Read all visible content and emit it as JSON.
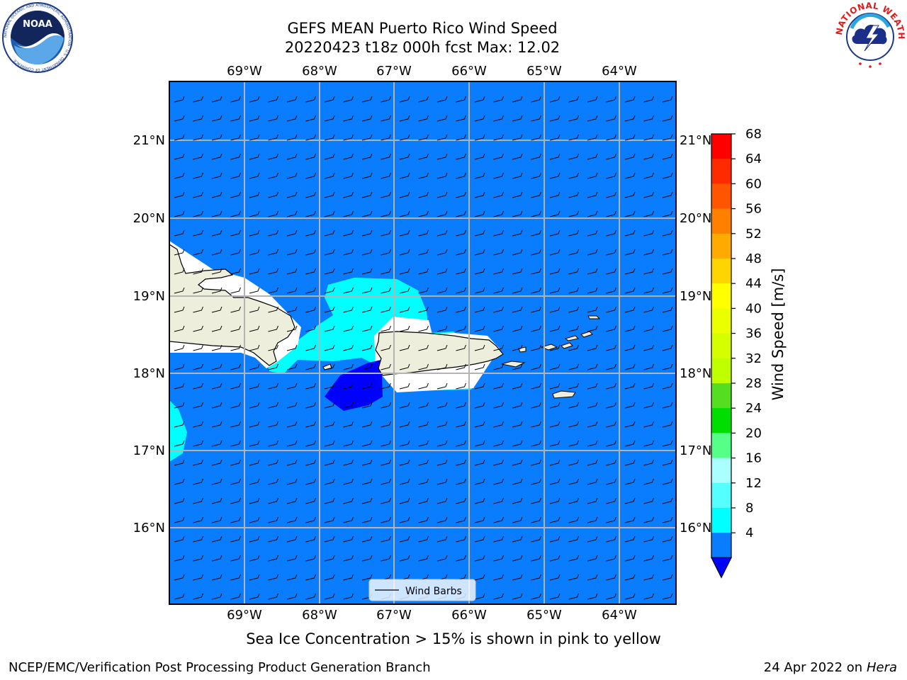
{
  "header": {
    "title_line1": "GEFS MEAN Puerto Rico Wind Speed",
    "title_line2": "20220423 t18z 000h fcst   Max: 12.02"
  },
  "logos": {
    "noaa_text": "NOAA",
    "noaa_ring_text": "NATIONAL OCEANIC AND ATMOSPHERIC ADMINISTRATION · U.S. DEPARTMENT OF COMMERCE",
    "nws_ring_text": "NATIONAL WEATHER SERVICE"
  },
  "map": {
    "lon_labels": [
      "69°W",
      "68°W",
      "67°W",
      "66°W",
      "65°W",
      "64°W"
    ],
    "lat_labels": [
      "21°N",
      "20°N",
      "19°N",
      "18°N",
      "17°N",
      "16°N"
    ],
    "legend_label": "Wind Barbs",
    "ocean_color": "#0a7dff",
    "land_color": "#eeeedd"
  },
  "colorbar": {
    "label": "Wind Speed [m/s]",
    "ticks": [
      "68",
      "64",
      "60",
      "56",
      "52",
      "48",
      "44",
      "40",
      "36",
      "32",
      "28",
      "24",
      "20",
      "16",
      "12",
      "8",
      "4"
    ],
    "colors_top_to_bottom": [
      "#ff0000",
      "#ff2a00",
      "#ff5500",
      "#ff8000",
      "#ffaa00",
      "#ffd500",
      "#ffff00",
      "#ecff00",
      "#d5ff00",
      "#bfff00",
      "#55dd22",
      "#00dd00",
      "#55ff88",
      "#aaffff",
      "#55ffff",
      "#00ffff",
      "#0a7dff"
    ],
    "below_color": "#0000ff"
  },
  "note": "Sea Ice Concentration > 15% is shown in pink to yellow",
  "footer": {
    "left": "NCEP/EMC/Verification Post Processing Product Generation Branch",
    "right_date": "24 Apr 2022 on ",
    "right_host": "Hera"
  }
}
